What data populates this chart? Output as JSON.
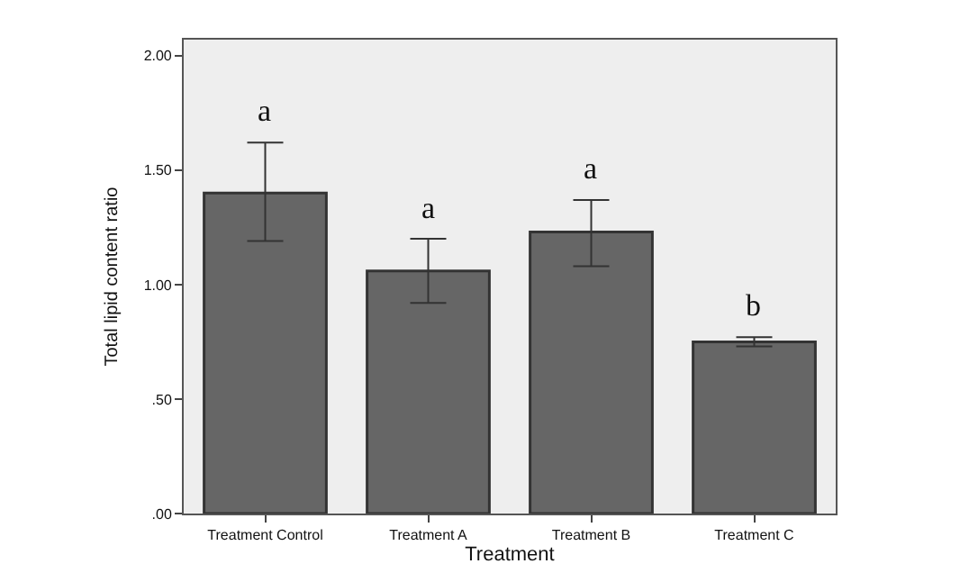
{
  "chart_data": {
    "type": "bar",
    "xlabel": "Treatment",
    "ylabel": "Total lipid content ratio",
    "categories": [
      "Treatment Control",
      "Treatment A",
      "Treatment B",
      "Treatment C"
    ],
    "values": [
      1.4,
      1.06,
      1.23,
      0.75
    ],
    "errors": [
      [
        1.19,
        1.62
      ],
      [
        0.92,
        1.2
      ],
      [
        1.08,
        1.37
      ],
      [
        0.73,
        0.77
      ]
    ],
    "color": "#666666",
    "ylim": [
      0,
      2.07
    ],
    "yticks": [
      {
        "value": 0,
        "label": ".00"
      },
      {
        "value": 0.5,
        "label": ".50"
      },
      {
        "value": 1,
        "label": "1.00"
      },
      {
        "value": 1.5,
        "label": "1.50"
      },
      {
        "value": 2,
        "label": "2.00"
      }
    ],
    "annotations": [
      "a",
      "a",
      "a",
      "b"
    ],
    "grid": false,
    "legend": false
  }
}
